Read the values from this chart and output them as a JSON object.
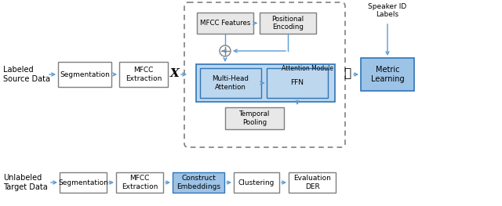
{
  "bg_color": "#ffffff",
  "arrow_color": "#5b9bd5",
  "box_border_gray": "#7f7f7f",
  "box_bg_white": "#ffffff",
  "box_bg_gray": "#e8e8e8",
  "box_bg_blue_light": "#bdd7ee",
  "box_bg_blue_medium": "#9dc3e6",
  "blue_box_border": "#2e75b6",
  "dashed_border": "#7f7f7f",
  "text_color": "#000000",
  "top_label": "Labeled\nSource Data",
  "bottom_label": "Unlabeled\nTarget Data",
  "speaker_label": "Speaker ID\nLabels",
  "x_label": "Χ",
  "z_label": "ℤ",
  "metric_box_text": "Metric\nLearning",
  "attention_module_label": "Attention Module",
  "mfcc_features_text": "MFCC Features",
  "pos_encoding_text": "Positional\nEncoding",
  "mha_text": "Multi-Head\nAttention",
  "ffn_text": "FFN",
  "temporal_text": "Temporal\nPooling",
  "top_seg_text": "Segmentation",
  "top_mfcc_text": "MFCC\nExtraction",
  "bot_seg_text": "Segmentation",
  "bot_mfcc_text": "MFCC\nExtraction",
  "bot_embed_text": "Construct\nEmbeddings",
  "bot_cluster_text": "Clustering",
  "bot_eval_text": "Evaluation\nDER"
}
